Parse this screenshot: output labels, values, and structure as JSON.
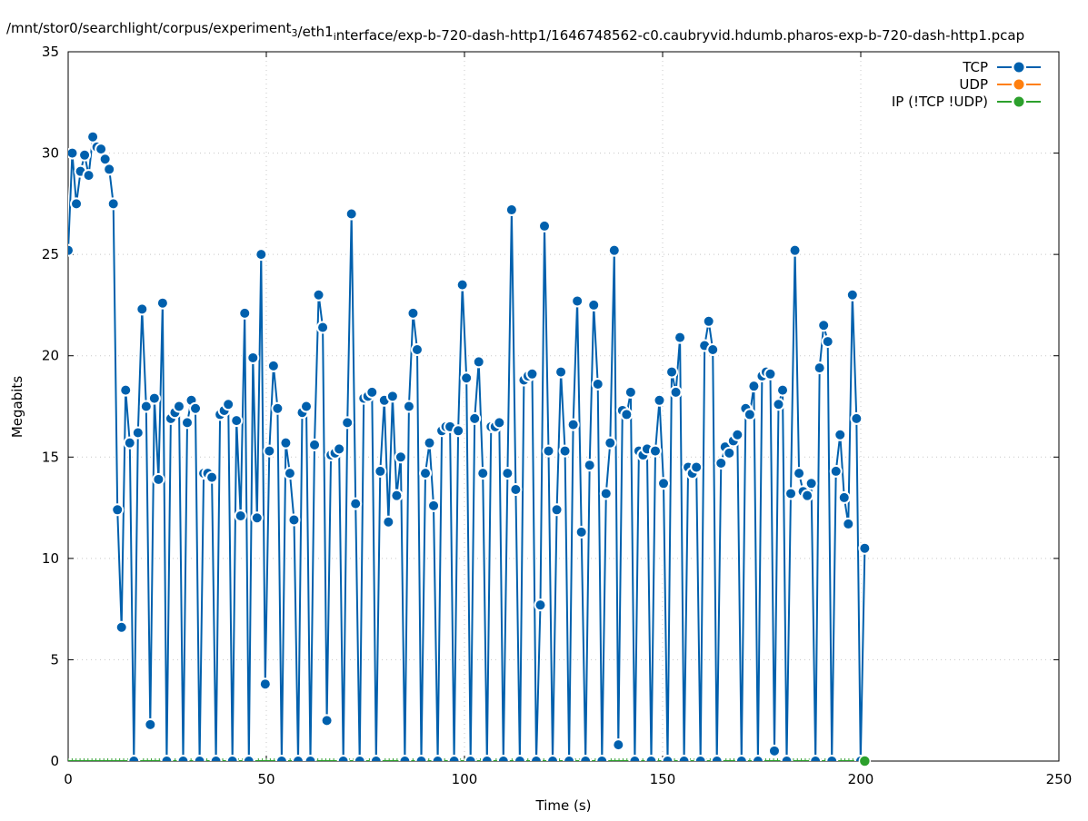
{
  "chart_data": {
    "type": "line",
    "title": "/mnt/stor0/searchlight/corpus/experiment_3/eth1_interface/exp-b-720-dash-http1/1646748562-c0.caubryvid.hdumb.pharos-exp-b-720-dash-http1.pcap",
    "xlabel": "Time (s)",
    "ylabel": "Megabits",
    "xlim": [
      0,
      250
    ],
    "ylim": [
      0,
      35
    ],
    "xticks": [
      "0",
      "50",
      "100",
      "150",
      "200",
      "250"
    ],
    "yticks": [
      "0",
      "5",
      "10",
      "15",
      "20",
      "25",
      "30",
      "35"
    ],
    "grid": true,
    "legend_position": "top-right",
    "x_range_of_series": [
      0,
      201
    ],
    "series": [
      {
        "name": "TCP",
        "color": "#0060ad",
        "values": [
          25.2,
          30.0,
          27.5,
          29.1,
          29.9,
          28.9,
          30.8,
          30.3,
          30.2,
          29.7,
          29.2,
          27.5,
          12.4,
          6.6,
          18.3,
          15.7,
          0,
          16.2,
          22.3,
          17.5,
          1.8,
          17.9,
          13.9,
          22.6,
          0,
          16.9,
          17.2,
          17.5,
          0,
          16.7,
          17.8,
          17.4,
          0,
          14.2,
          14.2,
          14.0,
          0,
          17.1,
          17.3,
          17.6,
          0,
          16.8,
          12.1,
          22.1,
          0,
          19.9,
          12.0,
          25.0,
          3.8,
          15.3,
          19.5,
          17.4,
          0,
          15.7,
          14.2,
          11.9,
          0,
          17.2,
          17.5,
          0,
          15.6,
          23.0,
          21.4,
          2.0,
          15.1,
          15.2,
          15.4,
          0,
          16.7,
          27.0,
          12.7,
          0,
          17.9,
          18.0,
          18.2,
          0,
          14.3,
          17.8,
          11.8,
          18.0,
          13.1,
          15.0,
          0,
          17.5,
          22.1,
          20.3,
          0,
          14.2,
          15.7,
          12.6,
          0,
          16.3,
          16.5,
          16.5,
          0,
          16.3,
          23.5,
          18.9,
          0,
          16.9,
          19.7,
          14.2,
          0,
          16.5,
          16.5,
          16.7,
          0,
          14.2,
          27.2,
          13.4,
          0,
          18.8,
          19.0,
          19.1,
          0,
          7.7,
          26.4,
          15.3,
          0,
          12.4,
          19.2,
          15.3,
          0,
          16.6,
          22.7,
          11.3,
          0,
          14.6,
          22.5,
          18.6,
          0,
          13.2,
          15.7,
          25.2,
          0.8,
          17.3,
          17.1,
          18.2,
          0,
          15.3,
          15.1,
          15.4,
          0,
          15.3,
          17.8,
          13.7,
          0,
          19.2,
          18.2,
          20.9,
          0,
          14.5,
          14.2,
          14.5,
          0,
          20.5,
          21.7,
          20.3,
          0,
          14.7,
          15.5,
          15.2,
          15.8,
          16.1,
          0,
          17.4,
          17.1,
          18.5,
          0,
          19.0,
          19.2,
          19.1,
          0.5,
          17.6,
          18.3,
          0,
          13.2,
          25.2,
          14.2,
          13.3,
          13.1,
          13.7,
          0,
          19.4,
          21.5,
          20.7,
          0,
          14.3,
          16.1,
          13.0,
          11.7,
          23.0,
          16.9,
          0,
          10.5
        ]
      },
      {
        "name": "UDP",
        "color": "#ff7f0e",
        "values": []
      },
      {
        "name": "IP (!TCP  !UDP)",
        "color": "#2ca02c",
        "values": [
          0
        ]
      }
    ]
  }
}
